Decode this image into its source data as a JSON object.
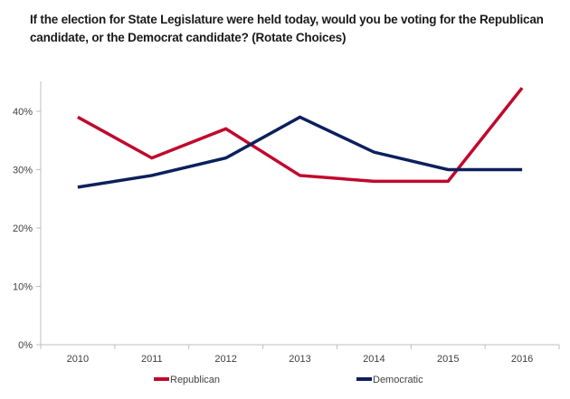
{
  "chart_data": {
    "type": "line",
    "title": "If the election for State Legislature were held today, would you be voting for the Republican candidate, or the Democrat candidate? (Rotate Choices)",
    "xlabel": "",
    "ylabel": "",
    "categories": [
      "2010",
      "2011",
      "2012",
      "2013",
      "2014",
      "2015",
      "2016"
    ],
    "ylim": [
      0,
      45
    ],
    "yticks": [
      0,
      10,
      20,
      30,
      40
    ],
    "ytick_labels": [
      "0%",
      "10%",
      "20%",
      "30%",
      "40%"
    ],
    "grid": false,
    "legend_position": "bottom",
    "series": [
      {
        "name": "Republican",
        "color": "#C0092D",
        "values": [
          39,
          32,
          37,
          29,
          28,
          28,
          44
        ]
      },
      {
        "name": "Democratic",
        "color": "#0D1F5C",
        "values": [
          27,
          29,
          32,
          39,
          33,
          30,
          30
        ]
      }
    ]
  }
}
